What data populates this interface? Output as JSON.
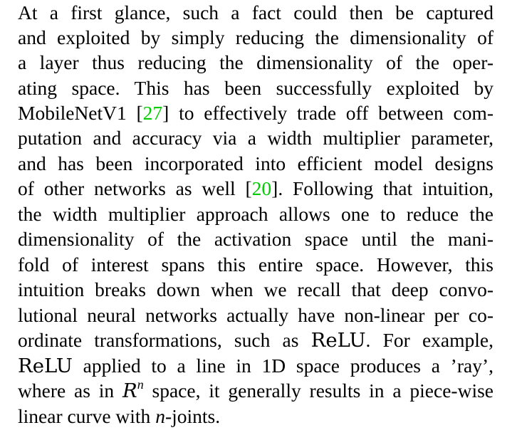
{
  "paragraph": {
    "l1": "At a first glance, such a fact could then be captured",
    "l2": "and exploited by simply reducing the dimensionality of",
    "l3": "a layer thus reducing the dimensionality of the oper-",
    "l4": "ating space.  This has been successfully exploited by",
    "l5_a": "MobileNetV1 [",
    "l5_cite": "27",
    "l5_b": "] to effectively trade off between com-",
    "l6": "putation and accuracy via a width multiplier parameter,",
    "l7": "and has been incorporated into efficient model designs",
    "l8_a": "of other networks as well [",
    "l8_cite": "20",
    "l8_b": "]. Following that intuition,",
    "l9": "the width multiplier approach allows one to reduce the",
    "l10": "dimensionality of the activation space until the mani-",
    "l11": "fold of interest spans this entire space.  However, this",
    "l12": "intuition breaks down when we recall that deep convo-",
    "l13": "lutional neural networks actually have non-linear per co-",
    "l14_a": "ordinate transformations, such as ",
    "l14_relu": "ReLU",
    "l14_b": ".  For example,",
    "l15_relu": "ReLU",
    "l15_b": " applied to a line in 1D space produces a ’ray’,",
    "l16_a": "where as in ",
    "l16_R": "R",
    "l16_n": "n",
    "l16_b": " space, it generally results in a piece-wise",
    "l17_a": "linear curve with ",
    "l17_n": "n",
    "l17_b": "-joints."
  },
  "colors": {
    "text": "#000000",
    "citation": "#00cc00",
    "background": "#ffffff"
  }
}
